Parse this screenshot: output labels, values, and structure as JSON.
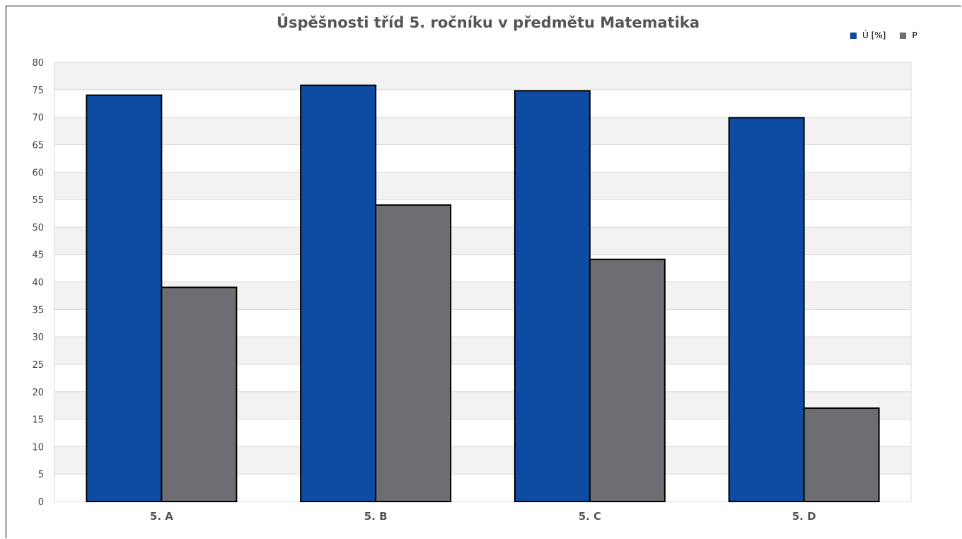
{
  "chart_data": {
    "type": "bar",
    "title": "Úspěšnosti tříd 5. ročníku v předmětu Matematika",
    "categories": [
      "5. A",
      "5. B",
      "5. C",
      "5. D"
    ],
    "series": [
      {
        "name": "Ú [%]",
        "values": [
          74,
          75.8,
          74.8,
          69.9
        ],
        "color": "#0d4ca2"
      },
      {
        "name": "P",
        "values": [
          39,
          54,
          44.1,
          17
        ],
        "color": "#6d6e71"
      }
    ],
    "xlabel": "",
    "ylabel": "",
    "ylim": [
      0,
      80
    ],
    "yticks": [
      0,
      5,
      10,
      15,
      20,
      25,
      30,
      35,
      40,
      45,
      50,
      55,
      60,
      65,
      70,
      75,
      80
    ],
    "grid": true,
    "legend_position": "top-right",
    "colors": {
      "plot_band_light": "#f2f2f2",
      "plot_band_white": "#ffffff",
      "grid": "#d9d9d9",
      "bar_outline": "#000000"
    }
  }
}
